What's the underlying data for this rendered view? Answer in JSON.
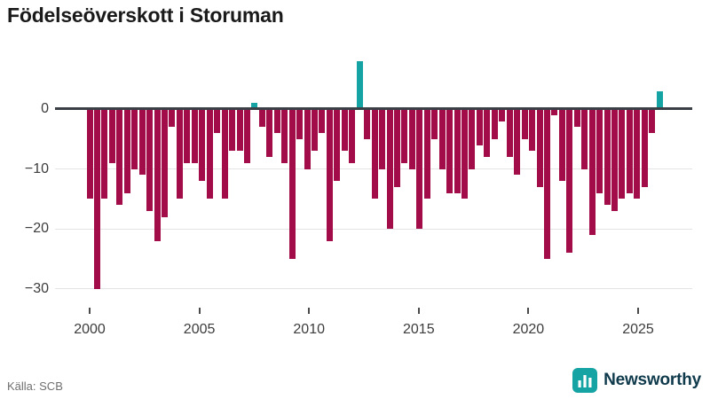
{
  "title": "Födelseöverskott i Storuman",
  "source": "Källa: SCB",
  "logo": {
    "text": "Newsworthy",
    "icon_color": "#16a3a3",
    "text_color": "#0e3a4c"
  },
  "chart_data": {
    "type": "bar",
    "title": "Födelseöverskott i Storuman",
    "xlabel": "",
    "ylabel": "",
    "x_tick_labels": [
      "2000",
      "2005",
      "2010",
      "2015",
      "2020",
      "2025"
    ],
    "y_tick_labels": [
      "0",
      "−10",
      "−20",
      "−30"
    ],
    "y_tick_values": [
      0,
      -10,
      -20,
      -30
    ],
    "ylim": [
      -31.5,
      8.5
    ],
    "grid": "horizontal",
    "legend": "none",
    "start_year": 2000,
    "periods_per_year": 3,
    "positive_color": "#16a3a3",
    "negative_color": "#a10c49",
    "values": [
      -15,
      -30,
      -15,
      -9,
      -16,
      -14,
      -10,
      -11,
      -17,
      -22,
      -18,
      -3,
      -15,
      -9,
      -9,
      -12,
      -15,
      -4,
      -15,
      -7,
      -7,
      -9,
      1,
      -3,
      -8,
      -4,
      -9,
      -25,
      -5,
      -10,
      -7,
      -4,
      -22,
      -12,
      -7,
      -9,
      8,
      -5,
      -15,
      -10,
      -20,
      -13,
      -9,
      -10,
      -20,
      -15,
      -5,
      -10,
      -14,
      -14,
      -15,
      -10,
      -6,
      -8,
      -5,
      -2,
      -8,
      -11,
      -5,
      -7,
      -13,
      -25,
      -1,
      -12,
      -24,
      -3,
      -10,
      -21,
      -14,
      -16,
      -17,
      -15,
      -14,
      -15,
      -13,
      -4,
      3
    ]
  }
}
